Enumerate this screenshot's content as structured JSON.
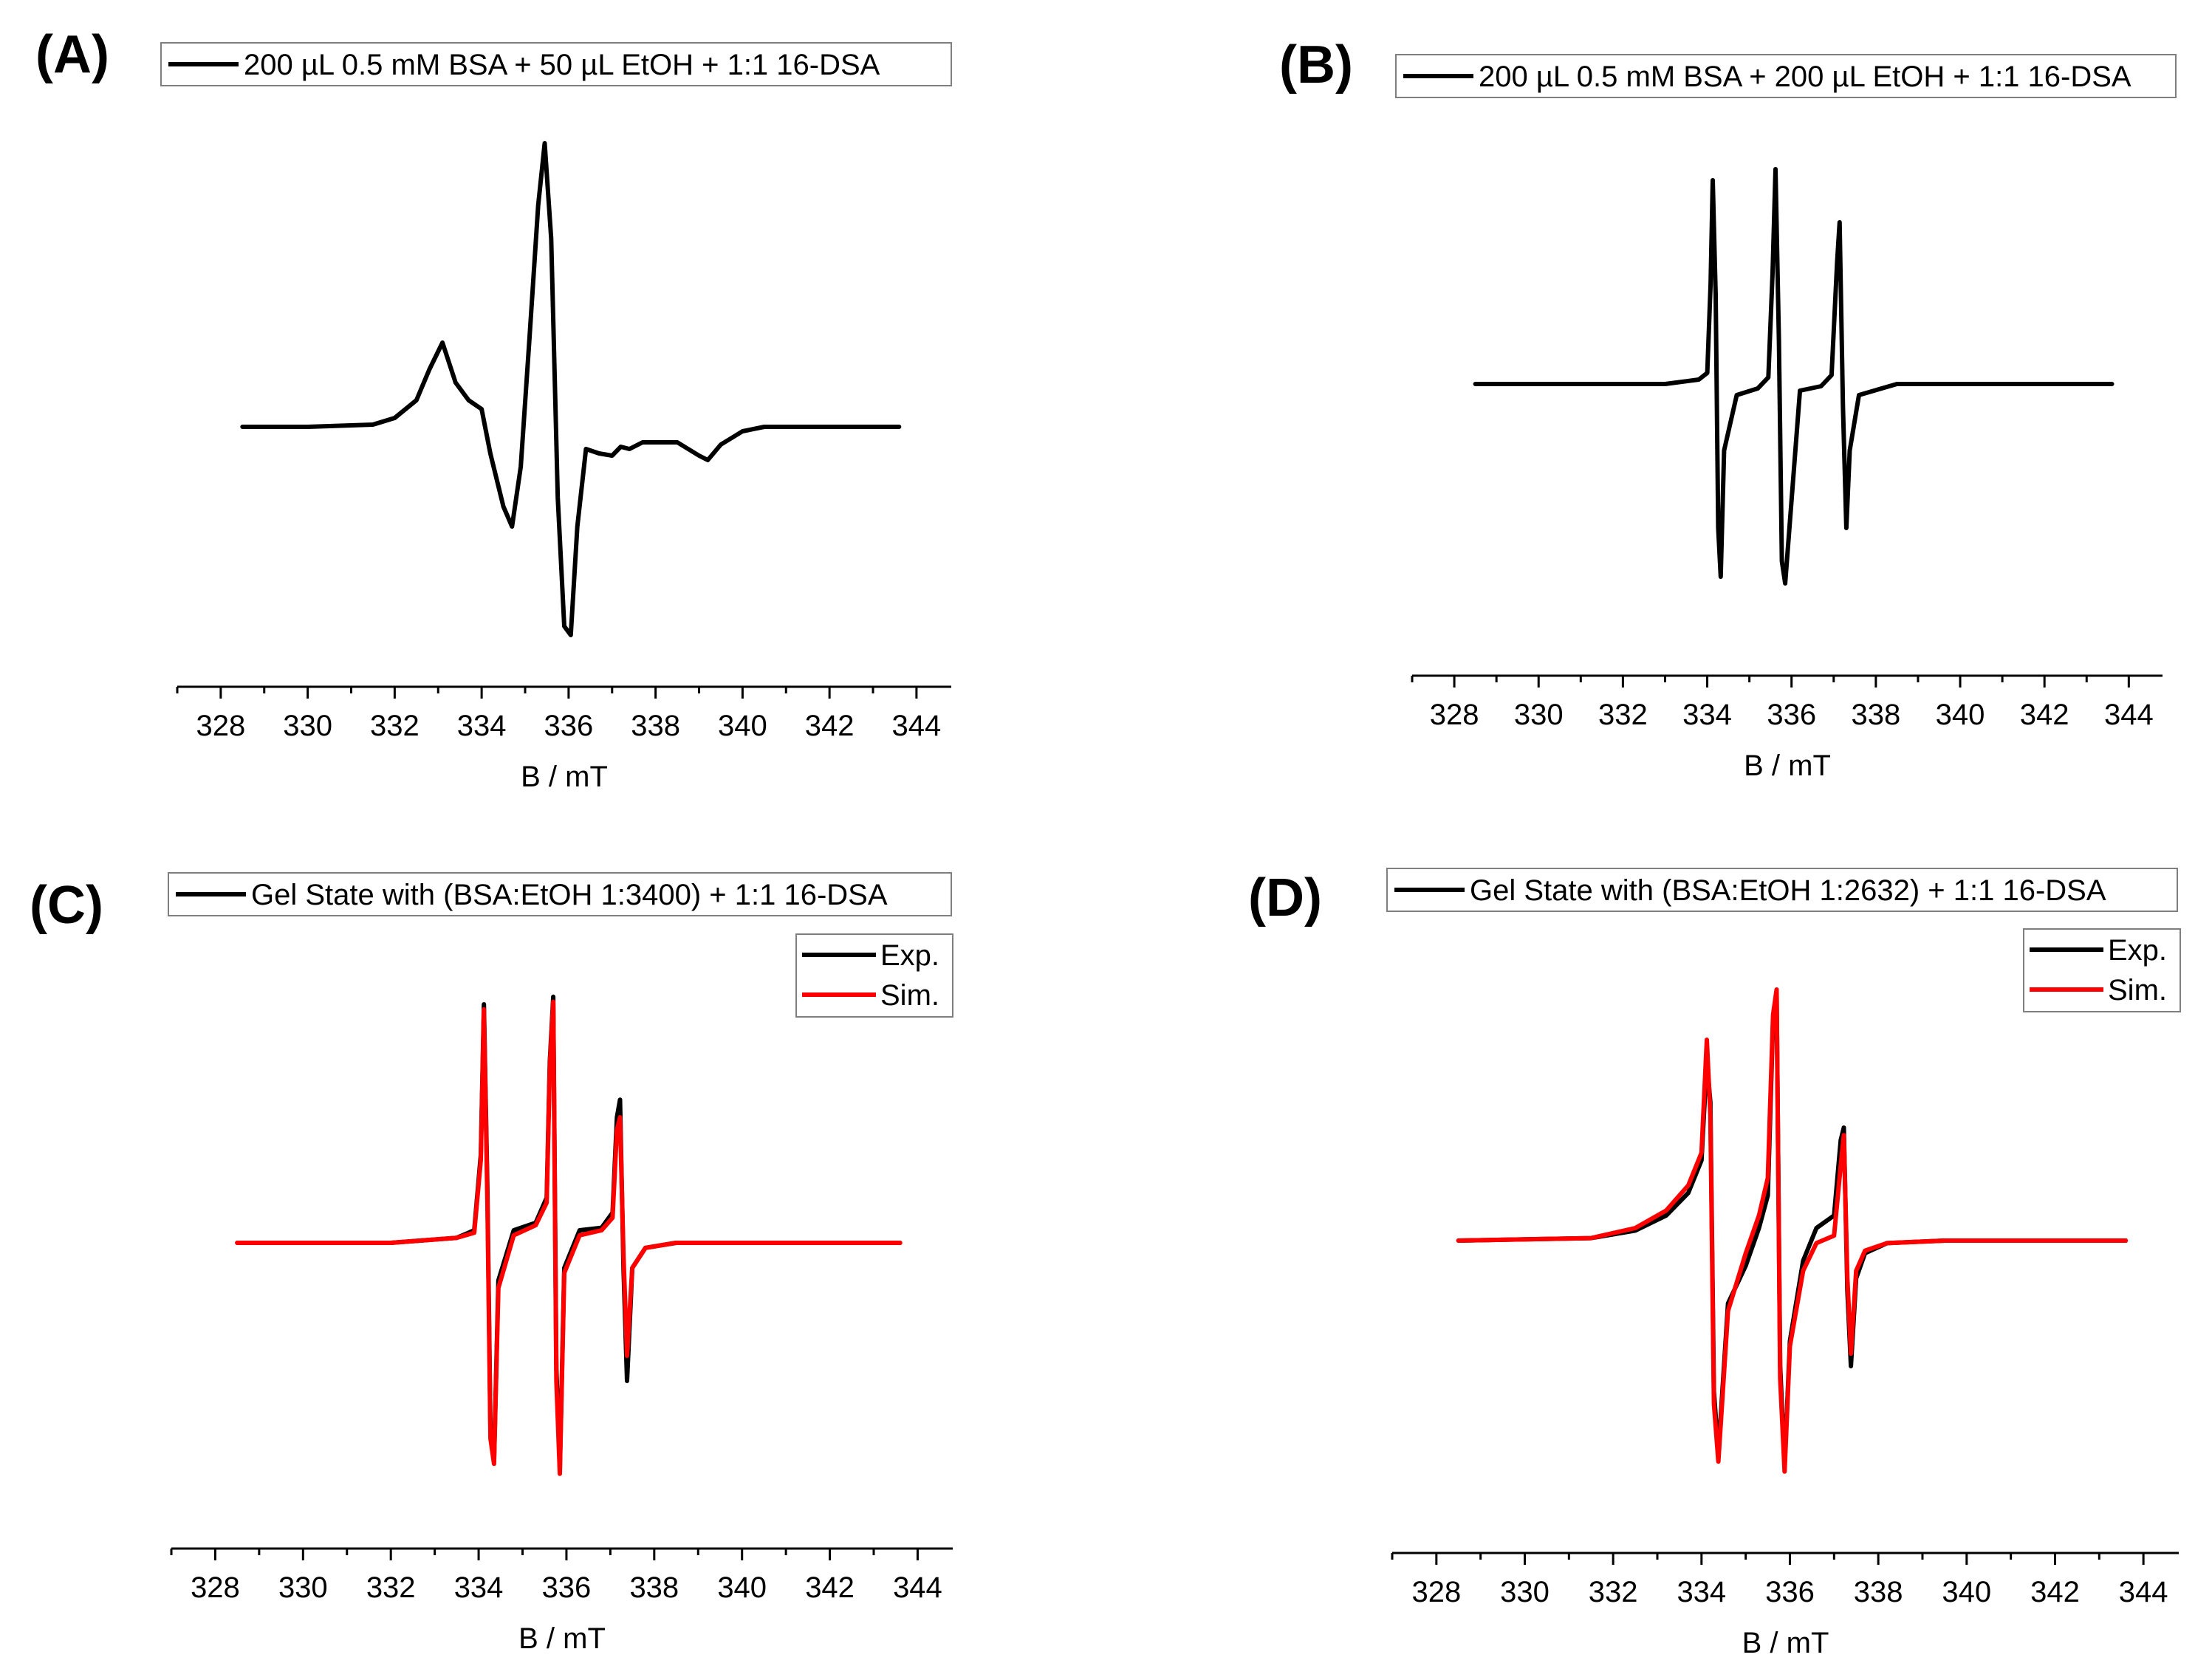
{
  "figure": {
    "panels": [
      {
        "letter": "(A)",
        "legend_top": [
          "200 µL 0.5 mM BSA + 50 µL EtOH + 1:1 16-DSA"
        ],
        "legend_box": []
      },
      {
        "letter": "(B)",
        "legend_top": [
          "200 µL 0.5 mM BSA + 200 µL EtOH + 1:1 16-DSA"
        ],
        "legend_box": []
      },
      {
        "letter": "(C)",
        "legend_top": [
          "Gel State with (BSA:EtOH 1:3400) + 1:1 16-DSA"
        ],
        "legend_box": [
          "Exp.",
          "Sim."
        ]
      },
      {
        "letter": "(D)",
        "legend_top": [
          "Gel State with (BSA:EtOH 1:2632) + 1:1 16-DSA"
        ],
        "legend_box": [
          "Exp.",
          "Sim."
        ]
      }
    ]
  },
  "chart_data": [
    {
      "type": "line",
      "panel": "(A)",
      "xlabel": "B / mT",
      "ylabel": "",
      "xlim": [
        327,
        344.8
      ],
      "ylim": [
        -1.1,
        1.1
      ],
      "xticks": [
        328,
        330,
        332,
        334,
        336,
        338,
        340,
        342,
        344
      ],
      "y_axis_shown": false,
      "colors": {
        "Exp.": "#000000"
      },
      "series": [
        {
          "name": "200 µL 0.5 mM BSA + 50 µL EtOH + 1:1 16-DSA",
          "x": [
            328.5,
            330.0,
            331.5,
            332.0,
            332.5,
            332.8,
            333.1,
            333.4,
            333.7,
            334.0,
            334.2,
            334.5,
            334.7,
            334.9,
            335.1,
            335.3,
            335.45,
            335.6,
            335.75,
            335.9,
            336.05,
            336.2,
            336.4,
            336.7,
            337.0,
            337.2,
            337.4,
            337.7,
            338.0,
            338.5,
            339.0,
            339.2,
            339.5,
            340.0,
            340.5,
            341.5,
            342.5,
            343.6
          ],
          "y": [
            0.0,
            0.0,
            0.01,
            0.04,
            0.12,
            0.26,
            0.38,
            0.2,
            0.12,
            0.08,
            -0.12,
            -0.36,
            -0.45,
            -0.18,
            0.4,
            1.0,
            1.28,
            0.85,
            -0.32,
            -0.9,
            -0.94,
            -0.45,
            -0.1,
            -0.12,
            -0.13,
            -0.09,
            -0.1,
            -0.07,
            -0.07,
            -0.07,
            -0.13,
            -0.15,
            -0.08,
            -0.02,
            0.0,
            0.0,
            0.0,
            0.0
          ]
        }
      ]
    },
    {
      "type": "line",
      "panel": "(B)",
      "xlabel": "B / mT",
      "ylabel": "",
      "xlim": [
        327,
        344.8
      ],
      "ylim": [
        -1.1,
        1.1
      ],
      "xticks": [
        328,
        330,
        332,
        334,
        336,
        338,
        340,
        342,
        344
      ],
      "y_axis_shown": false,
      "colors": {
        "Exp.": "#000000"
      },
      "series": [
        {
          "name": "200 µL 0.5 mM BSA + 200 µL EtOH + 1:1 16-DSA",
          "x": [
            328.5,
            333.0,
            333.8,
            334.0,
            334.08,
            334.13,
            334.2,
            334.26,
            334.32,
            334.4,
            334.7,
            335.2,
            335.45,
            335.55,
            335.62,
            335.7,
            335.77,
            335.85,
            336.2,
            336.7,
            336.95,
            337.08,
            337.14,
            337.22,
            337.3,
            337.38,
            337.6,
            338.5,
            340.0,
            342.0,
            343.6
          ],
          "y": [
            0.0,
            0.0,
            0.02,
            0.05,
            0.45,
            0.92,
            0.4,
            -0.65,
            -0.87,
            -0.3,
            -0.05,
            -0.02,
            0.03,
            0.5,
            0.97,
            0.2,
            -0.8,
            -0.9,
            -0.03,
            -0.01,
            0.04,
            0.55,
            0.73,
            -0.1,
            -0.65,
            -0.3,
            -0.05,
            0.0,
            0.0,
            0.0,
            0.0
          ]
        }
      ]
    },
    {
      "type": "line",
      "panel": "(C)",
      "xlabel": "B / mT",
      "ylabel": "",
      "xlim": [
        327,
        344.8
      ],
      "ylim": [
        -1.1,
        1.1
      ],
      "xticks": [
        328,
        330,
        332,
        334,
        336,
        338,
        340,
        342,
        344
      ],
      "y_axis_shown": false,
      "colors": {
        "Exp.": "#000000",
        "Sim.": "#ff0000"
      },
      "series": [
        {
          "name": "Exp.",
          "x": [
            328.5,
            332.0,
            333.5,
            333.9,
            334.05,
            334.12,
            334.2,
            334.27,
            334.35,
            334.45,
            334.8,
            335.3,
            335.55,
            335.62,
            335.7,
            335.77,
            335.85,
            335.95,
            336.3,
            336.8,
            337.05,
            337.15,
            337.22,
            337.3,
            337.38,
            337.5,
            337.8,
            338.5,
            340.0,
            342.0,
            343.6
          ],
          "y": [
            0.0,
            0.0,
            0.02,
            0.05,
            0.35,
            0.95,
            0.2,
            -0.75,
            -0.87,
            -0.15,
            0.05,
            0.08,
            0.18,
            0.72,
            0.98,
            -0.5,
            -0.9,
            -0.1,
            0.05,
            0.06,
            0.12,
            0.5,
            0.57,
            -0.1,
            -0.55,
            -0.1,
            -0.02,
            0.0,
            0.0,
            0.0,
            0.0
          ]
        },
        {
          "name": "Sim.",
          "x": [
            328.5,
            332.0,
            333.5,
            333.9,
            334.05,
            334.12,
            334.2,
            334.27,
            334.35,
            334.45,
            334.8,
            335.3,
            335.55,
            335.62,
            335.7,
            335.77,
            335.85,
            335.95,
            336.3,
            336.8,
            337.05,
            337.15,
            337.22,
            337.3,
            337.38,
            337.5,
            337.8,
            338.5,
            340.0,
            342.0,
            343.6
          ],
          "y": [
            0.0,
            0.0,
            0.02,
            0.04,
            0.33,
            0.93,
            0.15,
            -0.78,
            -0.88,
            -0.18,
            0.03,
            0.07,
            0.16,
            0.7,
            0.96,
            -0.55,
            -0.92,
            -0.12,
            0.03,
            0.05,
            0.1,
            0.45,
            0.5,
            -0.05,
            -0.45,
            -0.1,
            -0.02,
            0.0,
            0.0,
            0.0,
            0.0
          ]
        }
      ]
    },
    {
      "type": "line",
      "panel": "(D)",
      "xlabel": "B / mT",
      "ylabel": "",
      "xlim": [
        327,
        344.8
      ],
      "ylim": [
        -1.1,
        1.1
      ],
      "xticks": [
        328,
        330,
        332,
        334,
        336,
        338,
        340,
        342,
        344
      ],
      "y_axis_shown": false,
      "colors": {
        "Exp.": "#000000",
        "Sim.": "#ff0000"
      },
      "series": [
        {
          "name": "Exp.",
          "x": [
            328.5,
            331.5,
            332.5,
            333.2,
            333.7,
            334.0,
            334.12,
            334.2,
            334.28,
            334.38,
            334.6,
            335.0,
            335.3,
            335.5,
            335.62,
            335.7,
            335.78,
            335.88,
            336.0,
            336.3,
            336.6,
            337.0,
            337.15,
            337.22,
            337.3,
            337.38,
            337.5,
            337.7,
            338.2,
            339.5,
            341.5,
            343.6
          ],
          "y": [
            0.0,
            0.01,
            0.04,
            0.1,
            0.19,
            0.32,
            0.72,
            0.55,
            -0.6,
            -0.85,
            -0.25,
            -0.1,
            0.05,
            0.18,
            0.88,
            0.98,
            -0.5,
            -0.9,
            -0.4,
            -0.08,
            0.05,
            0.1,
            0.4,
            0.45,
            -0.2,
            -0.5,
            -0.15,
            -0.05,
            -0.01,
            0.0,
            0.0,
            0.0
          ]
        },
        {
          "name": "Sim.",
          "x": [
            328.5,
            331.5,
            332.5,
            333.2,
            333.7,
            334.0,
            334.12,
            334.2,
            334.28,
            334.38,
            334.6,
            335.0,
            335.3,
            335.5,
            335.62,
            335.7,
            335.78,
            335.88,
            336.0,
            336.3,
            336.6,
            337.0,
            337.15,
            337.22,
            337.3,
            337.38,
            337.5,
            337.7,
            338.2,
            339.5,
            341.5,
            343.6
          ],
          "y": [
            0.0,
            0.01,
            0.05,
            0.12,
            0.22,
            0.35,
            0.8,
            0.5,
            -0.65,
            -0.88,
            -0.28,
            -0.05,
            0.1,
            0.25,
            0.9,
            1.0,
            -0.55,
            -0.92,
            -0.42,
            -0.12,
            -0.01,
            0.02,
            0.3,
            0.42,
            -0.15,
            -0.45,
            -0.12,
            -0.04,
            -0.01,
            0.0,
            0.0,
            0.0
          ]
        }
      ]
    }
  ]
}
